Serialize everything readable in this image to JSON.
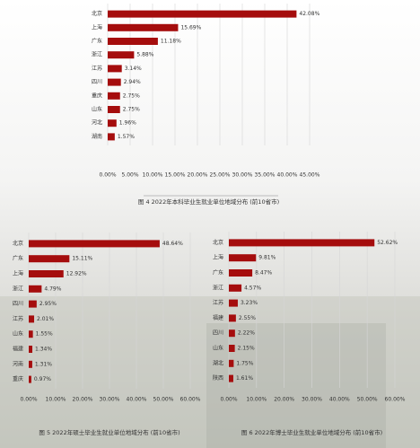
{
  "chart_data": [
    {
      "type": "bar",
      "orientation": "horizontal",
      "title": "图 4 2022年本科毕业生就业单位地域分布 (前10省市)",
      "categories": [
        "北京",
        "上海",
        "广东",
        "浙江",
        "江苏",
        "四川",
        "重庆",
        "山东",
        "河北",
        "湖南"
      ],
      "values": [
        42.08,
        15.69,
        11.18,
        5.88,
        3.14,
        2.94,
        2.75,
        2.75,
        1.96,
        1.57
      ],
      "value_labels": [
        "42.08%",
        "15.69%",
        "11.18%",
        "5.88%",
        "3.14%",
        "2.94%",
        "2.75%",
        "2.75%",
        "1.96%",
        "1.57%"
      ],
      "color": "#a50d0d",
      "grid": true,
      "xlim": [
        0,
        45
      ],
      "xticks": [
        {
          "value": 0,
          "label": "0.00%"
        },
        {
          "value": 5,
          "label": "5.00%"
        },
        {
          "value": 10,
          "label": "10.00%"
        },
        {
          "value": 15,
          "label": "15.00%"
        },
        {
          "value": 20,
          "label": "20.00%"
        },
        {
          "value": 25,
          "label": "25.00%"
        },
        {
          "value": 30,
          "label": "30.00%"
        },
        {
          "value": 35,
          "label": "35.00%"
        },
        {
          "value": 40,
          "label": "40.00%"
        },
        {
          "value": 45,
          "label": "45.00%"
        }
      ]
    },
    {
      "type": "bar",
      "orientation": "horizontal",
      "title": "图 5 2022年硕士毕业生就业单位地域分布 (前10省市)",
      "categories": [
        "北京",
        "广东",
        "上海",
        "浙江",
        "四川",
        "江苏",
        "山东",
        "福建",
        "河南",
        "重庆"
      ],
      "values": [
        48.64,
        15.11,
        12.92,
        4.79,
        2.95,
        2.01,
        1.55,
        1.34,
        1.31,
        0.97
      ],
      "value_labels": [
        "48.64%",
        "15.11%",
        "12.92%",
        "4.79%",
        "2.95%",
        "2.01%",
        "1.55%",
        "1.34%",
        "1.31%",
        "0.97%"
      ],
      "color": "#a50d0d",
      "grid": true,
      "xlim": [
        0,
        60
      ],
      "xticks": [
        {
          "value": 0,
          "label": "0.00%"
        },
        {
          "value": 10,
          "label": "10.00%"
        },
        {
          "value": 20,
          "label": "20.00%"
        },
        {
          "value": 30,
          "label": "30.00%"
        },
        {
          "value": 40,
          "label": "40.00%"
        },
        {
          "value": 50,
          "label": "50.00%"
        },
        {
          "value": 60,
          "label": "60.00%"
        }
      ]
    },
    {
      "type": "bar",
      "orientation": "horizontal",
      "title": "图 6 2022年博士毕业生就业单位地域分布 (前10省市)",
      "categories": [
        "北京",
        "上海",
        "广东",
        "浙江",
        "江苏",
        "福建",
        "四川",
        "山东",
        "湖北",
        "陕西"
      ],
      "values": [
        52.62,
        9.81,
        8.47,
        4.57,
        3.23,
        2.55,
        2.22,
        2.15,
        1.75,
        1.61
      ],
      "value_labels": [
        "52.62%",
        "9.81%",
        "8.47%",
        "4.57%",
        "3.23%",
        "2.55%",
        "2.22%",
        "2.15%",
        "1.75%",
        "1.61%"
      ],
      "color": "#a50d0d",
      "grid": true,
      "xlim": [
        0,
        60
      ],
      "xticks": [
        {
          "value": 0,
          "label": "0.00%"
        },
        {
          "value": 10,
          "label": "10.00%"
        },
        {
          "value": 20,
          "label": "20.00%"
        },
        {
          "value": 30,
          "label": "30.00%"
        },
        {
          "value": 40,
          "label": "40.00%"
        },
        {
          "value": 50,
          "label": "50.00%"
        },
        {
          "value": 60,
          "label": "60.00%"
        }
      ]
    }
  ]
}
